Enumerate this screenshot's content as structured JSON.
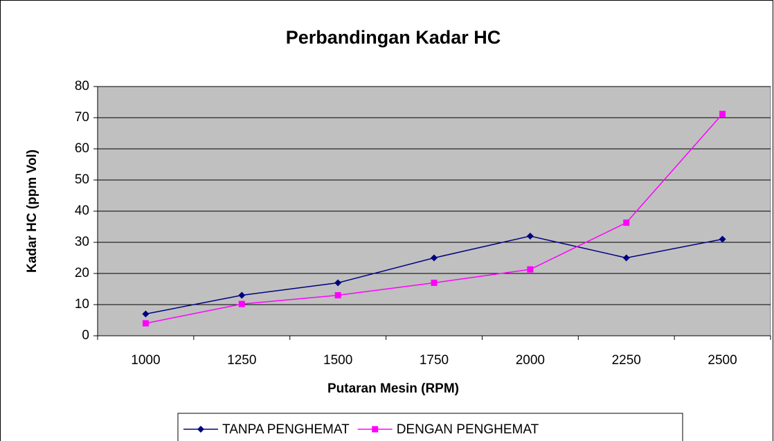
{
  "chart_data": {
    "type": "line",
    "title": "Perbandingan Kadar HC",
    "x_label": "Putaran Mesin (RPM)",
    "y_label": "Kadar HC (ppm Vol)",
    "categories": [
      "1000",
      "1250",
      "1500",
      "1750",
      "2000",
      "2250",
      "2500"
    ],
    "series": [
      {
        "name": "TANPA PENGHEMAT",
        "color": "#000080",
        "marker": "diamond",
        "values": [
          7,
          13,
          17,
          25,
          32,
          25,
          31
        ]
      },
      {
        "name": "DENGAN PENGHEMAT",
        "color": "#ff00ff",
        "marker": "square",
        "values": [
          4,
          10.2,
          13,
          17,
          21.3,
          36.3,
          71.2
        ]
      }
    ],
    "ylim": [
      0,
      80
    ],
    "yticks": [
      0,
      10,
      20,
      30,
      40,
      50,
      60,
      70,
      80
    ],
    "grid": true,
    "legend": "bottom"
  }
}
